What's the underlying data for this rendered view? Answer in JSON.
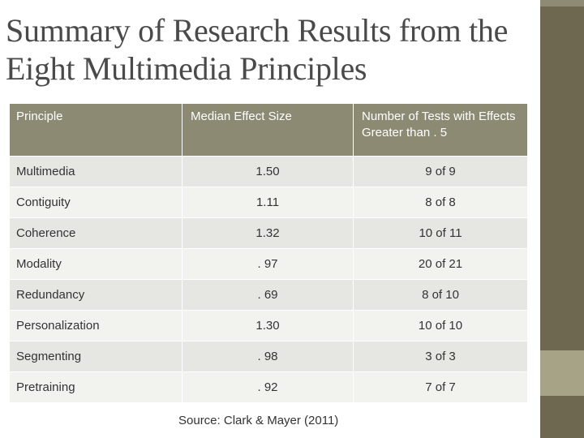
{
  "slide": {
    "title": "Summary of Research Results from the Eight Multimedia Principles",
    "source": "Source: Clark & Mayer (2011)"
  },
  "table": {
    "headers": [
      "Principle",
      "Median Effect Size",
      "Number of Tests with Effects Greater than . 5"
    ],
    "rows": [
      {
        "principle": "Multimedia",
        "effect": "1.50",
        "tests": "9 of 9"
      },
      {
        "principle": "Contiguity",
        "effect": "1.11",
        "tests": "8 of 8"
      },
      {
        "principle": "Coherence",
        "effect": "1.32",
        "tests": "10 of 11"
      },
      {
        "principle": "Modality",
        "effect": ". 97",
        "tests": "20 of 21"
      },
      {
        "principle": "Redundancy",
        "effect": ". 69",
        "tests": "8 of 10"
      },
      {
        "principle": "Personalization",
        "effect": "1.30",
        "tests": "10 of 10"
      },
      {
        "principle": "Segmenting",
        "effect": ". 98",
        "tests": "3 of 3"
      },
      {
        "principle": "Pretraining",
        "effect": ". 92",
        "tests": "7 of 7"
      }
    ]
  },
  "theme": {
    "header_bg": "#8d8a74",
    "sidebar_color": "#6e6850",
    "sidebar_accent": "#a7a386"
  }
}
